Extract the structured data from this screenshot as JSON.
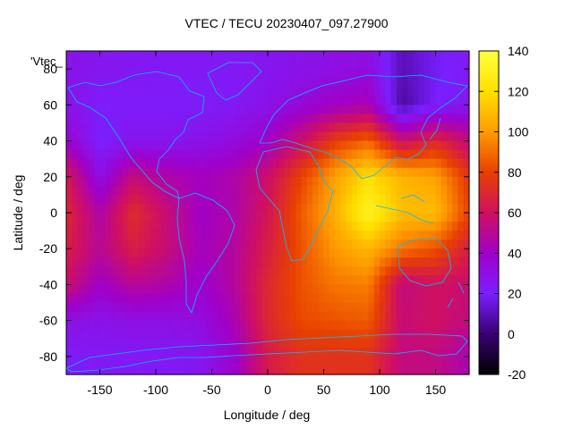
{
  "chart_data": {
    "type": "heatmap",
    "title": "VTEC / TECU 20230407_097.27900",
    "xlabel": "Longitude / deg",
    "ylabel": "Latitude / deg",
    "legend_entry": "'Vtec_",
    "xlim": [
      -180,
      180
    ],
    "ylim": [
      -90,
      90
    ],
    "xticks": [
      -150,
      -100,
      -50,
      0,
      50,
      100,
      150
    ],
    "yticks": [
      -80,
      -60,
      -40,
      -20,
      0,
      20,
      40,
      60,
      80
    ],
    "colorbar": {
      "range": [
        -20,
        140
      ],
      "ticks": [
        -20,
        0,
        20,
        40,
        60,
        80,
        100,
        120,
        140
      ],
      "colormap": [
        "#000000",
        "#3a0070",
        "#7a1fff",
        "#a000c8",
        "#d01060",
        "#e84000",
        "#ff9a00",
        "#ffe000",
        "#ffff40"
      ]
    },
    "lon": [
      -180,
      -150,
      -120,
      -90,
      -60,
      -30,
      0,
      30,
      60,
      90,
      120,
      150,
      180
    ],
    "lat": [
      80,
      60,
      40,
      20,
      0,
      -20,
      -40,
      -60,
      -80
    ],
    "values": [
      [
        28,
        26,
        25,
        24,
        24,
        24,
        26,
        28,
        30,
        32,
        10,
        18,
        24
      ],
      [
        28,
        22,
        22,
        22,
        22,
        24,
        28,
        34,
        40,
        44,
        6,
        20,
        26
      ],
      [
        38,
        20,
        26,
        26,
        28,
        32,
        40,
        58,
        78,
        88,
        58,
        70,
        54
      ],
      [
        64,
        30,
        55,
        46,
        42,
        46,
        58,
        80,
        102,
        120,
        108,
        102,
        76
      ],
      [
        70,
        46,
        72,
        56,
        40,
        46,
        62,
        86,
        106,
        132,
        110,
        110,
        80
      ],
      [
        66,
        50,
        66,
        56,
        42,
        48,
        66,
        84,
        100,
        108,
        92,
        84,
        66
      ],
      [
        58,
        40,
        50,
        46,
        38,
        48,
        70,
        84,
        92,
        94,
        54,
        60,
        56
      ],
      [
        30,
        28,
        30,
        30,
        32,
        44,
        70,
        82,
        84,
        86,
        56,
        60,
        54
      ],
      [
        22,
        24,
        24,
        24,
        26,
        38,
        64,
        74,
        74,
        74,
        54,
        54,
        44
      ]
    ]
  }
}
